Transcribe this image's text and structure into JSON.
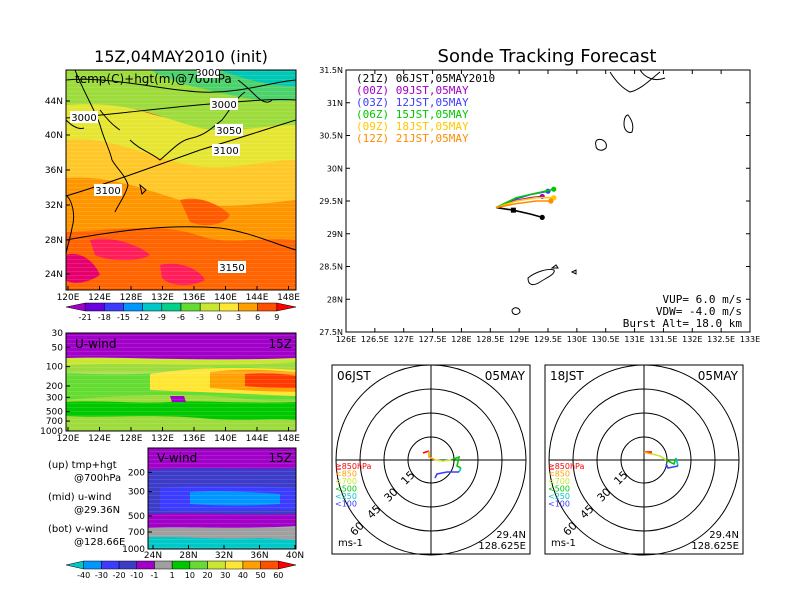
{
  "left": {
    "title": "15Z,04MAY2010 (init)",
    "map_label": "temp(C)+hgt(m)@700hPa",
    "contours": [
      "3000",
      "3000",
      "3050",
      "3100",
      "3100",
      "3150",
      "3000"
    ],
    "lat_ticks": [
      "44N",
      "40N",
      "36N",
      "32N",
      "28N",
      "24N"
    ],
    "lon_ticks": [
      "120E",
      "124E",
      "128E",
      "132E",
      "136E",
      "140E",
      "144E",
      "148E"
    ],
    "temp_levels": [
      "-21",
      "-18",
      "-15",
      "-12",
      "-9",
      "-6",
      "-3",
      "0",
      "3",
      "6",
      "9"
    ],
    "temp_colors": [
      "#a000c8",
      "#6a00e0",
      "#3c3cff",
      "#0096ff",
      "#00c8c8",
      "#00d28c",
      "#64dc32",
      "#c8e632",
      "#ffe632",
      "#ffa000",
      "#ff5000",
      "#ff0000"
    ],
    "uwind": {
      "label": "U-wind",
      "time": "15Z"
    },
    "vwind": {
      "label": "V-wind",
      "time": "15Z"
    },
    "p_ticks": [
      "30",
      "50",
      "100",
      "200",
      "300",
      "500",
      "700",
      "1000"
    ],
    "vwind_p_ticks": [
      "200",
      "300",
      "500",
      "700",
      "1000"
    ],
    "vwind_x_ticks": [
      "24N",
      "28N",
      "32N",
      "36N",
      "40N"
    ],
    "wind_levels": [
      "-40",
      "-30",
      "-20",
      "-10",
      "-1",
      "1",
      "10",
      "20",
      "30",
      "40",
      "50",
      "60"
    ],
    "wind_colors": [
      "#00c8c8",
      "#0096ff",
      "#3c3cff",
      "#3c3cc8",
      "#a000c8",
      "#a0a0a0",
      "#00c800",
      "#64dc32",
      "#c8e632",
      "#ffe632",
      "#ffa000",
      "#ff5000",
      "#ff0000"
    ],
    "notes": [
      {
        "a": "(up) tmp+hgt",
        "b": "@700hPa"
      },
      {
        "a": "(mid) u-wind",
        "b": "@29.36N"
      },
      {
        "a": "(bot) v-wind",
        "b": "@128.66E"
      }
    ]
  },
  "right": {
    "title": "Sonde Tracking Forecast",
    "legend": [
      {
        "text": "(21Z) 06JST,05MAY2010",
        "color": "#000000"
      },
      {
        "text": "(00Z) 09JST,05MAY",
        "color": "#a000c8"
      },
      {
        "text": "(03Z) 12JST,05MAY",
        "color": "#3c3cff"
      },
      {
        "text": "(06Z) 15JST,05MAY",
        "color": "#00c800"
      },
      {
        "text": "(09Z) 18JST,05MAY",
        "color": "#ffc800"
      },
      {
        "text": "(12Z) 21JST,05MAY",
        "color": "#ff8c00"
      }
    ],
    "lat_ticks": [
      "31.5N",
      "31N",
      "30.5N",
      "30N",
      "29.5N",
      "29N",
      "28.5N",
      "28N",
      "27.5N"
    ],
    "lon_ticks": [
      "126E",
      "126.5E",
      "127E",
      "127.5E",
      "128E",
      "128.5E",
      "129E",
      "129.5E",
      "130E",
      "130.5E",
      "131E",
      "131.5E",
      "132E",
      "132.5E",
      "133E"
    ],
    "params": [
      "VUP= 6.0 m/s",
      "VDW= -4.0 m/s",
      "Burst Alt= 18.0 km"
    ]
  },
  "hodographs": [
    {
      "time": "06JST",
      "date": "05MAY",
      "rings": [
        "15",
        "30",
        "45",
        "60"
      ],
      "lat": "29.4N",
      "lon": "128.625E",
      "unit": "ms-1",
      "levels": [
        {
          "t": "≧850hPa",
          "c": "#ff0000"
        },
        {
          "t": "<850",
          "c": "#ffa000"
        },
        {
          "t": "<700",
          "c": "#c8e632"
        },
        {
          "t": "<500",
          "c": "#00c800"
        },
        {
          "t": "<250",
          "c": "#00c8c8"
        },
        {
          "t": "<100",
          "c": "#3c3cff"
        }
      ]
    },
    {
      "time": "18JST",
      "date": "05MAY",
      "rings": [
        "15",
        "30",
        "45",
        "60"
      ],
      "lat": "29.4N",
      "lon": "128.625E",
      "unit": "ms-1",
      "levels": [
        {
          "t": "≧850hPa",
          "c": "#ff0000"
        },
        {
          "t": "<850",
          "c": "#ffa000"
        },
        {
          "t": "<700",
          "c": "#c8e632"
        },
        {
          "t": "<500",
          "c": "#00c800"
        },
        {
          "t": "<250",
          "c": "#00c8c8"
        },
        {
          "t": "<100",
          "c": "#3c3cff"
        }
      ]
    }
  ],
  "chart_data": [
    {
      "type": "heatmap",
      "title": "15Z,04MAY2010 (init)",
      "label": "temp(C)+hgt(m)@700hPa",
      "x_range": [
        "120E",
        "149E"
      ],
      "y_range": [
        "22N",
        "47N"
      ],
      "contour_labels": [
        3000,
        3000,
        3050,
        3100,
        3100,
        3150,
        3000
      ],
      "levels": [
        -21,
        -18,
        -15,
        -12,
        -9,
        -6,
        -3,
        0,
        3,
        6,
        9
      ]
    },
    {
      "type": "heatmap",
      "title": "U-wind",
      "subtitle": "15Z",
      "x_range": [
        "120E",
        "149E"
      ],
      "y_ticks": [
        30,
        50,
        100,
        200,
        300,
        500,
        700,
        1000
      ],
      "levels": [
        -40,
        -30,
        -20,
        -10,
        -1,
        1,
        10,
        20,
        30,
        40,
        50,
        60
      ]
    },
    {
      "type": "heatmap",
      "title": "V-wind",
      "subtitle": "15Z",
      "x_range": [
        "24N",
        "40N"
      ],
      "y_ticks": [
        200,
        300,
        500,
        700,
        1000
      ],
      "levels": [
        -40,
        -30,
        -20,
        -10,
        -1,
        1,
        10,
        20,
        30,
        40,
        50,
        60
      ]
    },
    {
      "type": "line",
      "title": "Sonde Tracking Forecast",
      "xlim": [
        126,
        133
      ],
      "ylim": [
        27.5,
        31.5
      ],
      "series": [
        {
          "name": "(21Z) 06JST,05MAY2010",
          "color": "#000000",
          "x": [
            128.6,
            128.9,
            129.2,
            129.4
          ],
          "y": [
            29.4,
            29.36,
            29.3,
            29.25
          ]
        },
        {
          "name": "(00Z) 09JST,05MAY",
          "color": "#a000c8",
          "x": [
            128.6,
            128.9,
            129.2,
            129.4
          ],
          "y": [
            29.4,
            29.5,
            29.55,
            29.57
          ]
        },
        {
          "name": "(03Z) 12JST,05MAY",
          "color": "#3c3cff",
          "x": [
            128.6,
            128.9,
            129.2,
            129.5
          ],
          "y": [
            29.4,
            29.52,
            29.6,
            29.65
          ]
        },
        {
          "name": "(06Z) 15JST,05MAY",
          "color": "#00c800",
          "x": [
            128.6,
            128.95,
            129.3,
            129.6
          ],
          "y": [
            29.4,
            29.55,
            29.62,
            29.68
          ]
        },
        {
          "name": "(09Z) 18JST,05MAY",
          "color": "#ffc800",
          "x": [
            128.6,
            128.95,
            129.3,
            129.6
          ],
          "y": [
            29.4,
            29.5,
            29.55,
            29.55
          ]
        },
        {
          "name": "(12Z) 21JST,05MAY",
          "color": "#ff8c00",
          "x": [
            128.6,
            128.95,
            129.3,
            129.55
          ],
          "y": [
            29.4,
            29.46,
            29.5,
            29.5
          ]
        }
      ],
      "annotations": [
        "VUP= 6.0 m/s",
        "VDW= -4.0 m/s",
        "Burst Alt= 18.0 km"
      ]
    }
  ]
}
